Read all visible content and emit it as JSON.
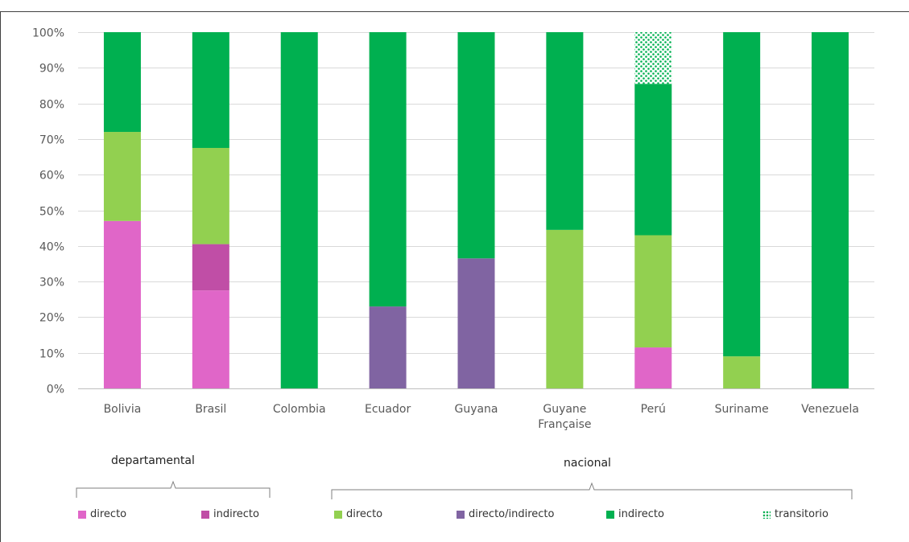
{
  "chart_data": {
    "type": "bar",
    "stacked": true,
    "categories": [
      "Bolivia",
      "Brasil",
      "Colombia",
      "Ecuador",
      "Guyana",
      "Guyane Française",
      "Perú",
      "Suriname",
      "Venezuela"
    ],
    "category_lines": [
      [
        "Bolivia"
      ],
      [
        "Brasil"
      ],
      [
        "Colombia"
      ],
      [
        "Ecuador"
      ],
      [
        "Guyana"
      ],
      [
        "Guyane",
        "Française"
      ],
      [
        "Perú"
      ],
      [
        "Suriname"
      ],
      [
        "Venezuela"
      ]
    ],
    "series": [
      {
        "name": "directo",
        "group": "departamental",
        "color": "#e066c8",
        "values": [
          47,
          27.5,
          0,
          0,
          0,
          0,
          11.5,
          0,
          0
        ]
      },
      {
        "name": "indirecto",
        "group": "departamental",
        "color": "#c04ea6",
        "values": [
          0,
          13,
          0,
          0,
          0,
          0,
          0,
          0,
          0
        ]
      },
      {
        "name": "directo",
        "group": "nacional",
        "color": "#92d050",
        "values": [
          25,
          27,
          0,
          0,
          0,
          44.5,
          31.5,
          9,
          0
        ]
      },
      {
        "name": "directo/indirecto",
        "group": "nacional",
        "color": "#8064a2",
        "values": [
          0,
          0,
          0,
          23,
          36.5,
          0,
          0,
          0,
          0
        ]
      },
      {
        "name": "indirecto",
        "group": "nacional",
        "color": "#00b050",
        "values": [
          28,
          32.5,
          100,
          77,
          63.5,
          55.5,
          42.5,
          91,
          100
        ]
      },
      {
        "name": "transitorio",
        "group": "nacional",
        "color": "#00b050",
        "pattern": "dots",
        "values": [
          0,
          0,
          0,
          0,
          0,
          0,
          14.5,
          0,
          0
        ]
      }
    ],
    "yticks": [
      "0%",
      "10%",
      "20%",
      "30%",
      "40%",
      "50%",
      "60%",
      "70%",
      "80%",
      "90%",
      "100%"
    ],
    "ylim": [
      0,
      100
    ],
    "grid": true,
    "legend_groups": [
      {
        "label": "departamental",
        "series_index": [
          0,
          1
        ]
      },
      {
        "label": "nacional",
        "series_index": [
          2,
          3,
          4,
          5
        ]
      }
    ]
  }
}
